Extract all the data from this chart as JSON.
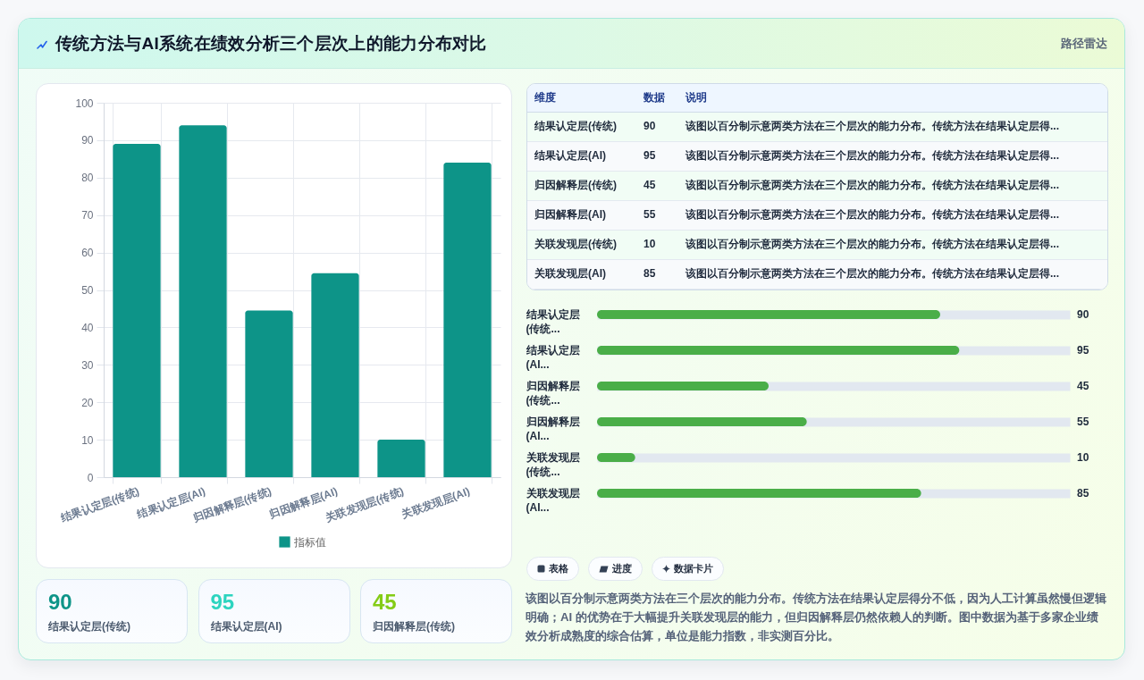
{
  "chart_data": [
    {
      "type": "bar",
      "title": "传统方法与AI系统在绩效分析三个层次上的能力分布对比",
      "annotations": [
        "路径雷达"
      ],
      "categories": [
        "结果认定层(传统)",
        "结果认定层(AI)",
        "归因解释层(传统)",
        "归因解释层(AI)",
        "关联发现层(传统)",
        "关联发现层(AI)"
      ],
      "series": [
        {
          "name": "指标值",
          "color": "#0d9488",
          "values": [
            89,
            94,
            44.5,
            54.5,
            10,
            84
          ]
        }
      ],
      "ylim": [
        0,
        100
      ],
      "yticks": [
        0,
        10,
        20,
        30,
        40,
        50,
        60,
        70,
        80,
        90,
        100
      ],
      "grid": true,
      "legend": "bottom"
    },
    {
      "type": "other",
      "categories": [
        "结果认定层(传统)",
        "结果认定层(AI)",
        "归因解释层(传统)"
      ],
      "values": [
        90,
        95,
        45
      ],
      "data_labels": true
    },
    {
      "type": "other",
      "categories": [
        "结果认定层(传统)",
        "结果认定层(AI)",
        "归因解释层(传统)",
        "归因解释层(AI)",
        "关联发现层(传统)",
        "关联发现层(AI)"
      ],
      "values": [
        90,
        95,
        45,
        55,
        10,
        85
      ],
      "data_labels": true,
      "annotations": [
        "维度",
        "数据",
        "说明",
        "该图以百分制示意两类方法在三个层次的能力分布。传统方法在结果认定层得..."
      ]
    },
    {
      "type": "bar",
      "orientation": "horizontal",
      "categories": [
        "结果认定层(传统...",
        "结果认定层(AI...",
        "归因解释层(传统...",
        "归因解释层(AI...",
        "关联发现层(传统...",
        "关联发现层(AI..."
      ],
      "series": [
        {
          "color": "#4aae48",
          "values": [
            90,
            95,
            45,
            55,
            10,
            85
          ]
        }
      ],
      "xlim": [
        0,
        124
      ],
      "grid": "y",
      "tick_labels": "y",
      "data_labels": true
    },
    {
      "type": "other",
      "annotations": [
        "表格",
        "进度",
        "数据卡片",
        "该图以百分制示意两类方法在三个层次的能力分布。传统方法在结果认定层得分不低，因为人工计算虽然慢但逻辑明确；AI 的优势在于大幅提升关联发现层的能力，但归因解释层仍然依赖人的判断。图中数据为基于多家企业绩效分析成熟度的综合估算，单位是能力指数，非实测百分比。"
      ]
    }
  ]
}
